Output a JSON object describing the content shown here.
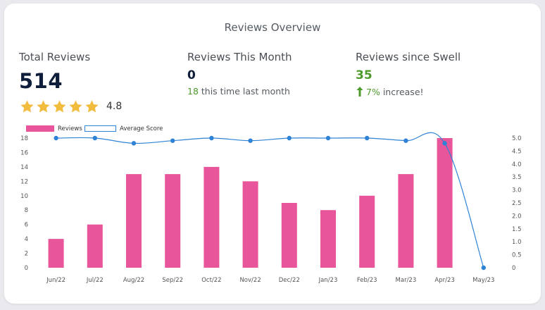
{
  "title": "Reviews Overview",
  "stats": {
    "total": {
      "label": "Total Reviews",
      "value": "514",
      "rating": "4.8",
      "stars_filled": 5
    },
    "month": {
      "label": "Reviews This Month",
      "value": "0",
      "last_value": "18",
      "last_text": "this time last month"
    },
    "swell": {
      "label": "Reviews since Swell",
      "value": "35",
      "pct": "7%",
      "pct_text": "increase!"
    }
  },
  "colors": {
    "bar": "#e8559a",
    "line": "#2f83d6",
    "green": "#4c9a2a",
    "star": "#f2bc3f"
  },
  "chart_data": {
    "type": "bar",
    "categories": [
      "Jun/22",
      "Jul/22",
      "Aug/22",
      "Sep/22",
      "Oct/22",
      "Nov/22",
      "Dec/22",
      "Jan/23",
      "Feb/23",
      "Mar/23",
      "Apr/23",
      "May/23"
    ],
    "series": [
      {
        "name": "Reviews",
        "type": "bar",
        "axis": "left",
        "values": [
          4,
          6,
          13,
          13,
          14,
          12,
          9,
          8,
          10,
          13,
          18,
          0
        ]
      },
      {
        "name": "Average Score",
        "type": "line",
        "axis": "right",
        "values": [
          5.0,
          5.0,
          4.8,
          4.9,
          5.0,
          4.9,
          5.0,
          5.0,
          5.0,
          4.9,
          4.8,
          0
        ]
      }
    ],
    "y_left": {
      "min": 0,
      "max": 18,
      "ticks": [
        "0",
        "2",
        "4",
        "6",
        "8",
        "10",
        "12",
        "14",
        "16",
        "18"
      ]
    },
    "y_right": {
      "min": 0,
      "max": 5,
      "ticks": [
        "0",
        "0.5",
        "1.0",
        "1.5",
        "2.0",
        "2.5",
        "3.0",
        "3.5",
        "4.0",
        "4.5",
        "5.0"
      ]
    },
    "legend": [
      "Reviews",
      "Average Score"
    ],
    "legend_position": "top-left",
    "grid": false
  }
}
